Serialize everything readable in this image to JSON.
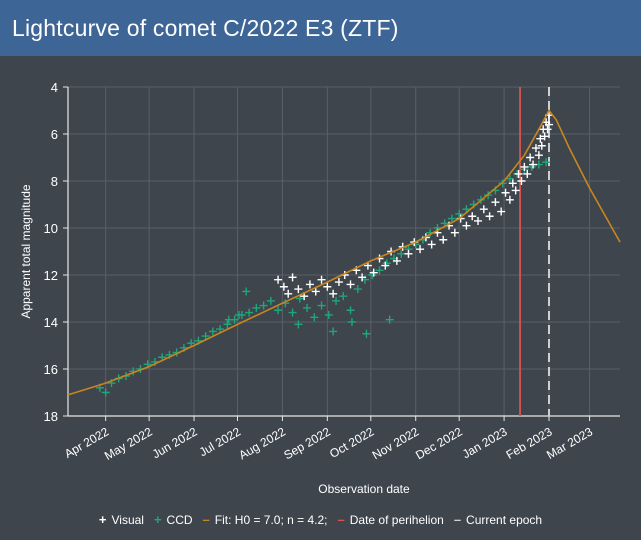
{
  "header": {
    "title": "Lightcurve of comet C/2022 E3 (ZTF)"
  },
  "colors": {
    "visual": "#ffffff",
    "ccd": "#1fa67a",
    "fit": "#c8861e",
    "perihelion": "#d9534f",
    "current_epoch": "#d0d0d0"
  },
  "chart_data": {
    "type": "scatter",
    "title": "",
    "xlabel": "Observation date",
    "ylabel": "Apparent total magnitude",
    "xlim": [
      "2022-03-06",
      "2023-03-22"
    ],
    "ylim": [
      18,
      4
    ],
    "y_inverted": true,
    "yticks": [
      4,
      6,
      8,
      10,
      12,
      14,
      16,
      18
    ],
    "xticks": [
      {
        "date": "2022-04-01",
        "label": "Apr 2022"
      },
      {
        "date": "2022-05-01",
        "label": "May 2022"
      },
      {
        "date": "2022-06-01",
        "label": "Jun 2022"
      },
      {
        "date": "2022-07-01",
        "label": "Jul 2022"
      },
      {
        "date": "2022-08-01",
        "label": "Aug 2022"
      },
      {
        "date": "2022-09-01",
        "label": "Sep 2022"
      },
      {
        "date": "2022-10-01",
        "label": "Oct 2022"
      },
      {
        "date": "2022-11-01",
        "label": "Nov 2022"
      },
      {
        "date": "2022-12-01",
        "label": "Dec 2022"
      },
      {
        "date": "2023-01-01",
        "label": "Jan 2023"
      },
      {
        "date": "2023-02-01",
        "label": "Feb 2023"
      },
      {
        "date": "2023-03-01",
        "label": "Mar 2023"
      }
    ],
    "grid": true,
    "legend_position": "bottom",
    "series": [
      {
        "name": "Visual",
        "marker": "plus",
        "points": [
          [
            "2022-07-29",
            12.2
          ],
          [
            "2022-08-02",
            12.5
          ],
          [
            "2022-08-05",
            12.8
          ],
          [
            "2022-08-08",
            12.1
          ],
          [
            "2022-08-12",
            12.6
          ],
          [
            "2022-08-16",
            12.9
          ],
          [
            "2022-08-20",
            12.4
          ],
          [
            "2022-08-24",
            12.7
          ],
          [
            "2022-08-28",
            12.2
          ],
          [
            "2022-09-01",
            12.5
          ],
          [
            "2022-09-05",
            12.8
          ],
          [
            "2022-09-09",
            12.3
          ],
          [
            "2022-09-13",
            12.0
          ],
          [
            "2022-09-17",
            12.4
          ],
          [
            "2022-09-21",
            11.8
          ],
          [
            "2022-09-25",
            12.1
          ],
          [
            "2022-09-29",
            11.6
          ],
          [
            "2022-10-03",
            11.9
          ],
          [
            "2022-10-07",
            11.3
          ],
          [
            "2022-10-11",
            11.6
          ],
          [
            "2022-10-15",
            11.0
          ],
          [
            "2022-10-19",
            11.4
          ],
          [
            "2022-10-23",
            10.8
          ],
          [
            "2022-10-27",
            11.1
          ],
          [
            "2022-10-31",
            10.6
          ],
          [
            "2022-11-04",
            10.9
          ],
          [
            "2022-11-08",
            10.4
          ],
          [
            "2022-11-12",
            10.7
          ],
          [
            "2022-11-16",
            10.2
          ],
          [
            "2022-11-20",
            10.5
          ],
          [
            "2022-11-24",
            9.9
          ],
          [
            "2022-11-28",
            10.2
          ],
          [
            "2022-12-02",
            9.6
          ],
          [
            "2022-12-06",
            9.9
          ],
          [
            "2022-12-10",
            9.5
          ],
          [
            "2022-12-14",
            9.7
          ],
          [
            "2022-12-18",
            9.2
          ],
          [
            "2022-12-22",
            9.5
          ],
          [
            "2022-12-26",
            8.9
          ],
          [
            "2022-12-30",
            9.3
          ],
          [
            "2023-01-02",
            8.5
          ],
          [
            "2023-01-05",
            8.8
          ],
          [
            "2023-01-07",
            8.1
          ],
          [
            "2023-01-09",
            8.4
          ],
          [
            "2023-01-11",
            7.7
          ],
          [
            "2023-01-13",
            8.0
          ],
          [
            "2023-01-15",
            7.4
          ],
          [
            "2023-01-17",
            7.7
          ],
          [
            "2023-01-19",
            7.0
          ],
          [
            "2023-01-21",
            7.3
          ],
          [
            "2023-01-23",
            6.6
          ],
          [
            "2023-01-25",
            6.9
          ],
          [
            "2023-01-26",
            6.2
          ],
          [
            "2023-01-27",
            6.5
          ],
          [
            "2023-01-28",
            5.8
          ],
          [
            "2023-01-29",
            6.1
          ],
          [
            "2023-01-30",
            5.5
          ],
          [
            "2023-01-31",
            5.8
          ],
          [
            "2023-02-01",
            5.2
          ],
          [
            "2023-02-01",
            5.6
          ]
        ]
      },
      {
        "name": "CCD",
        "marker": "plus",
        "points": [
          [
            "2022-03-28",
            16.8
          ],
          [
            "2022-04-01",
            17.0
          ],
          [
            "2022-04-05",
            16.6
          ],
          [
            "2022-04-10",
            16.4
          ],
          [
            "2022-04-15",
            16.3
          ],
          [
            "2022-04-20",
            16.1
          ],
          [
            "2022-04-25",
            16.0
          ],
          [
            "2022-04-30",
            15.8
          ],
          [
            "2022-05-05",
            15.7
          ],
          [
            "2022-05-10",
            15.5
          ],
          [
            "2022-05-15",
            15.4
          ],
          [
            "2022-05-20",
            15.3
          ],
          [
            "2022-05-25",
            15.1
          ],
          [
            "2022-05-30",
            14.9
          ],
          [
            "2022-06-04",
            14.8
          ],
          [
            "2022-06-09",
            14.6
          ],
          [
            "2022-06-14",
            14.4
          ],
          [
            "2022-06-19",
            14.3
          ],
          [
            "2022-06-24",
            14.1
          ],
          [
            "2022-06-29",
            13.9
          ],
          [
            "2022-07-04",
            13.7
          ],
          [
            "2022-07-09",
            13.6
          ],
          [
            "2022-07-14",
            13.4
          ],
          [
            "2022-07-19",
            13.3
          ],
          [
            "2022-07-24",
            13.1
          ],
          [
            "2022-07-29",
            13.5
          ],
          [
            "2022-08-03",
            13.2
          ],
          [
            "2022-08-08",
            13.6
          ],
          [
            "2022-08-13",
            13.0
          ],
          [
            "2022-08-18",
            13.4
          ],
          [
            "2022-08-23",
            13.8
          ],
          [
            "2022-08-28",
            13.3
          ],
          [
            "2022-09-02",
            13.7
          ],
          [
            "2022-09-07",
            13.1
          ],
          [
            "2022-09-12",
            12.9
          ],
          [
            "2022-09-17",
            13.5
          ],
          [
            "2022-09-22",
            12.6
          ],
          [
            "2022-09-27",
            12.2
          ],
          [
            "2022-10-02",
            12.0
          ],
          [
            "2022-10-07",
            11.8
          ],
          [
            "2022-10-12",
            11.5
          ],
          [
            "2022-10-17",
            11.3
          ],
          [
            "2022-10-22",
            11.1
          ],
          [
            "2022-10-27",
            10.9
          ],
          [
            "2022-11-01",
            10.7
          ],
          [
            "2022-11-06",
            10.5
          ],
          [
            "2022-11-11",
            10.2
          ],
          [
            "2022-11-16",
            10.0
          ],
          [
            "2022-11-21",
            9.8
          ],
          [
            "2022-11-26",
            9.6
          ],
          [
            "2022-12-01",
            9.4
          ],
          [
            "2022-12-06",
            9.2
          ],
          [
            "2022-12-11",
            9.0
          ],
          [
            "2022-12-16",
            8.8
          ],
          [
            "2022-12-21",
            8.6
          ],
          [
            "2022-12-26",
            8.4
          ],
          [
            "2022-12-31",
            8.1
          ],
          [
            "2023-01-05",
            7.9
          ],
          [
            "2023-01-10",
            7.7
          ],
          [
            "2023-01-15",
            7.5
          ],
          [
            "2023-01-20",
            7.4
          ],
          [
            "2023-01-25",
            7.3
          ],
          [
            "2023-01-30",
            7.2
          ],
          [
            "2022-06-25",
            13.9
          ],
          [
            "2022-07-02",
            13.7
          ],
          [
            "2022-07-07",
            12.7
          ],
          [
            "2022-08-12",
            14.1
          ],
          [
            "2022-09-05",
            14.4
          ],
          [
            "2022-09-18",
            14.0
          ],
          [
            "2022-09-28",
            14.5
          ],
          [
            "2022-10-14",
            13.9
          ]
        ]
      }
    ],
    "fit": {
      "name": "Fit: H0 = 7.0; n = 4.2;",
      "points": [
        [
          "2022-03-06",
          17.1
        ],
        [
          "2022-04-01",
          16.6
        ],
        [
          "2022-05-01",
          15.9
        ],
        [
          "2022-06-01",
          15.0
        ],
        [
          "2022-07-01",
          14.1
        ],
        [
          "2022-08-01",
          13.2
        ],
        [
          "2022-09-01",
          12.3
        ],
        [
          "2022-10-01",
          11.4
        ],
        [
          "2022-11-01",
          10.6
        ],
        [
          "2022-12-01",
          9.6
        ],
        [
          "2023-01-01",
          8.0
        ],
        [
          "2023-01-15",
          6.9
        ],
        [
          "2023-01-25",
          5.8
        ],
        [
          "2023-02-01",
          5.0
        ],
        [
          "2023-02-06",
          5.4
        ],
        [
          "2023-02-15",
          6.6
        ],
        [
          "2023-03-01",
          8.3
        ],
        [
          "2023-03-22",
          10.6
        ]
      ]
    },
    "vlines": [
      {
        "name": "Date of perihelion",
        "date": "2023-01-12",
        "style": "solid"
      },
      {
        "name": "Current epoch",
        "date": "2023-02-01",
        "style": "dashed"
      }
    ]
  }
}
